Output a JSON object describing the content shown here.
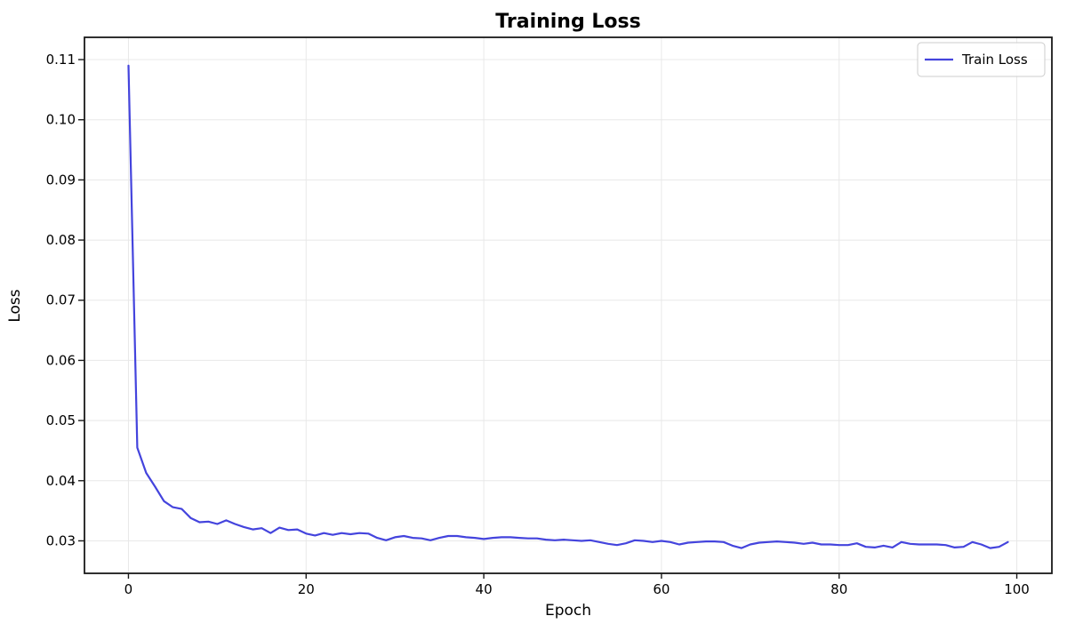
{
  "figure": {
    "title": "Training Loss",
    "xlabel": "Epoch",
    "ylabel": "Loss",
    "legend": {
      "entries": [
        "Train Loss"
      ],
      "position": "upper right"
    }
  },
  "colors": {
    "line": "#4444dd",
    "grid": "#e8e8e8",
    "spine": "#1a1a1a",
    "tick": "#1a1a1a",
    "legend_border": "#cccccc",
    "background": "#ffffff"
  },
  "chart_data": {
    "type": "line",
    "title": "Training Loss",
    "xlabel": "Epoch",
    "ylabel": "Loss",
    "grid": true,
    "legend_position": "upper right",
    "xlim": [
      -4.95,
      103.95
    ],
    "ylim": [
      0.0246,
      0.1137
    ],
    "x_ticks": [
      0,
      20,
      40,
      60,
      80,
      100
    ],
    "y_ticks": [
      0.03,
      0.04,
      0.05,
      0.06,
      0.07,
      0.08,
      0.09,
      0.1,
      0.11
    ],
    "x": {
      "start": 0,
      "step": 1,
      "note": "epoch index 0-99"
    },
    "series": [
      {
        "name": "Train Loss",
        "color": "#4444dd",
        "values": [
          0.109,
          0.0455,
          0.0413,
          0.039,
          0.0366,
          0.0356,
          0.0353,
          0.0338,
          0.0331,
          0.0332,
          0.0328,
          0.0334,
          0.0328,
          0.0323,
          0.0319,
          0.0321,
          0.0313,
          0.0322,
          0.0318,
          0.0319,
          0.0312,
          0.0309,
          0.0313,
          0.031,
          0.0313,
          0.0311,
          0.0313,
          0.0312,
          0.0305,
          0.0301,
          0.0306,
          0.0308,
          0.0305,
          0.0304,
          0.0301,
          0.0305,
          0.0308,
          0.0308,
          0.0306,
          0.0305,
          0.0303,
          0.0305,
          0.0306,
          0.0306,
          0.0305,
          0.0304,
          0.0304,
          0.0302,
          0.0301,
          0.0302,
          0.0301,
          0.03,
          0.0301,
          0.0298,
          0.0295,
          0.0293,
          0.0296,
          0.0301,
          0.03,
          0.0298,
          0.03,
          0.0298,
          0.0294,
          0.0297,
          0.0298,
          0.0299,
          0.0299,
          0.0298,
          0.0292,
          0.0288,
          0.0294,
          0.0297,
          0.0298,
          0.0299,
          0.0298,
          0.0297,
          0.0295,
          0.0297,
          0.0294,
          0.0294,
          0.0293,
          0.0293,
          0.0296,
          0.029,
          0.0289,
          0.0292,
          0.0289,
          0.0298,
          0.0295,
          0.0294,
          0.0294,
          0.0294,
          0.0293,
          0.0289,
          0.029,
          0.0298,
          0.0294,
          0.0288,
          0.029,
          0.0298
        ]
      }
    ]
  }
}
